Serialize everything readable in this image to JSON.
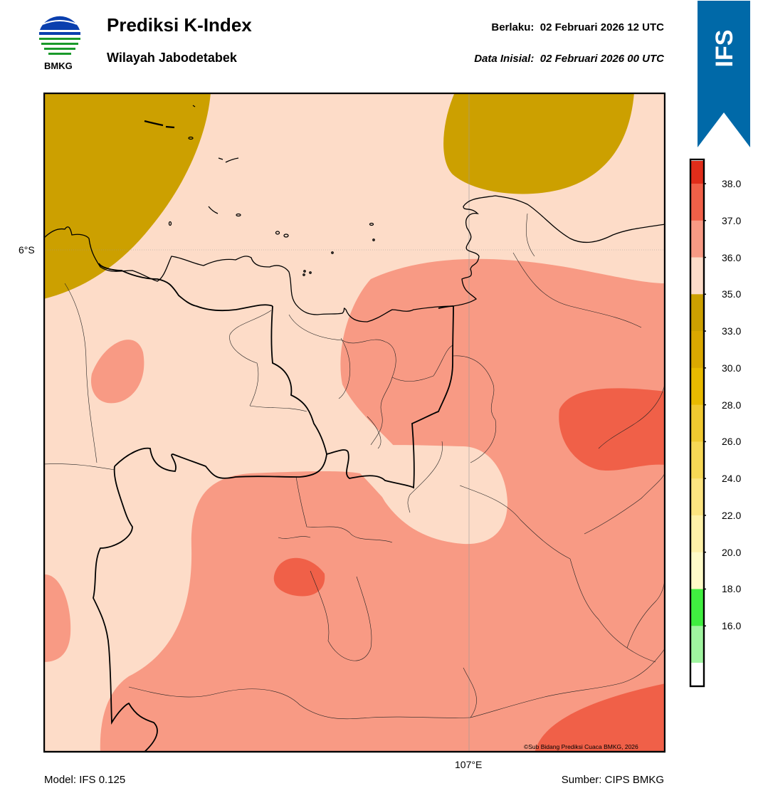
{
  "header": {
    "title": "Prediksi K-Index",
    "subtitle": "Wilayah Jabodetabek",
    "valid_label": "Berlaku:",
    "valid_time": "02 Februari 2026 12 UTC",
    "init_label": "Data Inisial:",
    "init_time": "02 Februari 2026 00 UTC"
  },
  "logo": {
    "text": "BMKG"
  },
  "badge": {
    "text": "IFS",
    "color": "#0069a8"
  },
  "map": {
    "lat_label": "6°S",
    "lon_label": "107°E",
    "credit": "©Sub Bidang Prediksi Cuaca BMKG, 2026"
  },
  "colorbar": {
    "ticks": [
      "38.0",
      "37.0",
      "36.0",
      "35.0",
      "33.0",
      "30.0",
      "28.0",
      "26.0",
      "24.0",
      "22.0",
      "20.0",
      "18.0",
      "16.0"
    ],
    "colors": [
      "#e02d1a",
      "#f06048",
      "#f89a84",
      "#fddcc8",
      "#cca000",
      "#daa800",
      "#e8ba00",
      "#f0c930",
      "#f7d855",
      "#fce480",
      "#fff1a8",
      "#fffbc8",
      "#40ee40",
      "#a0f5a0",
      "#ffffff"
    ]
  },
  "footer": {
    "model": "Model: IFS 0.125",
    "source": "Sumber: CIPS BMKG"
  }
}
